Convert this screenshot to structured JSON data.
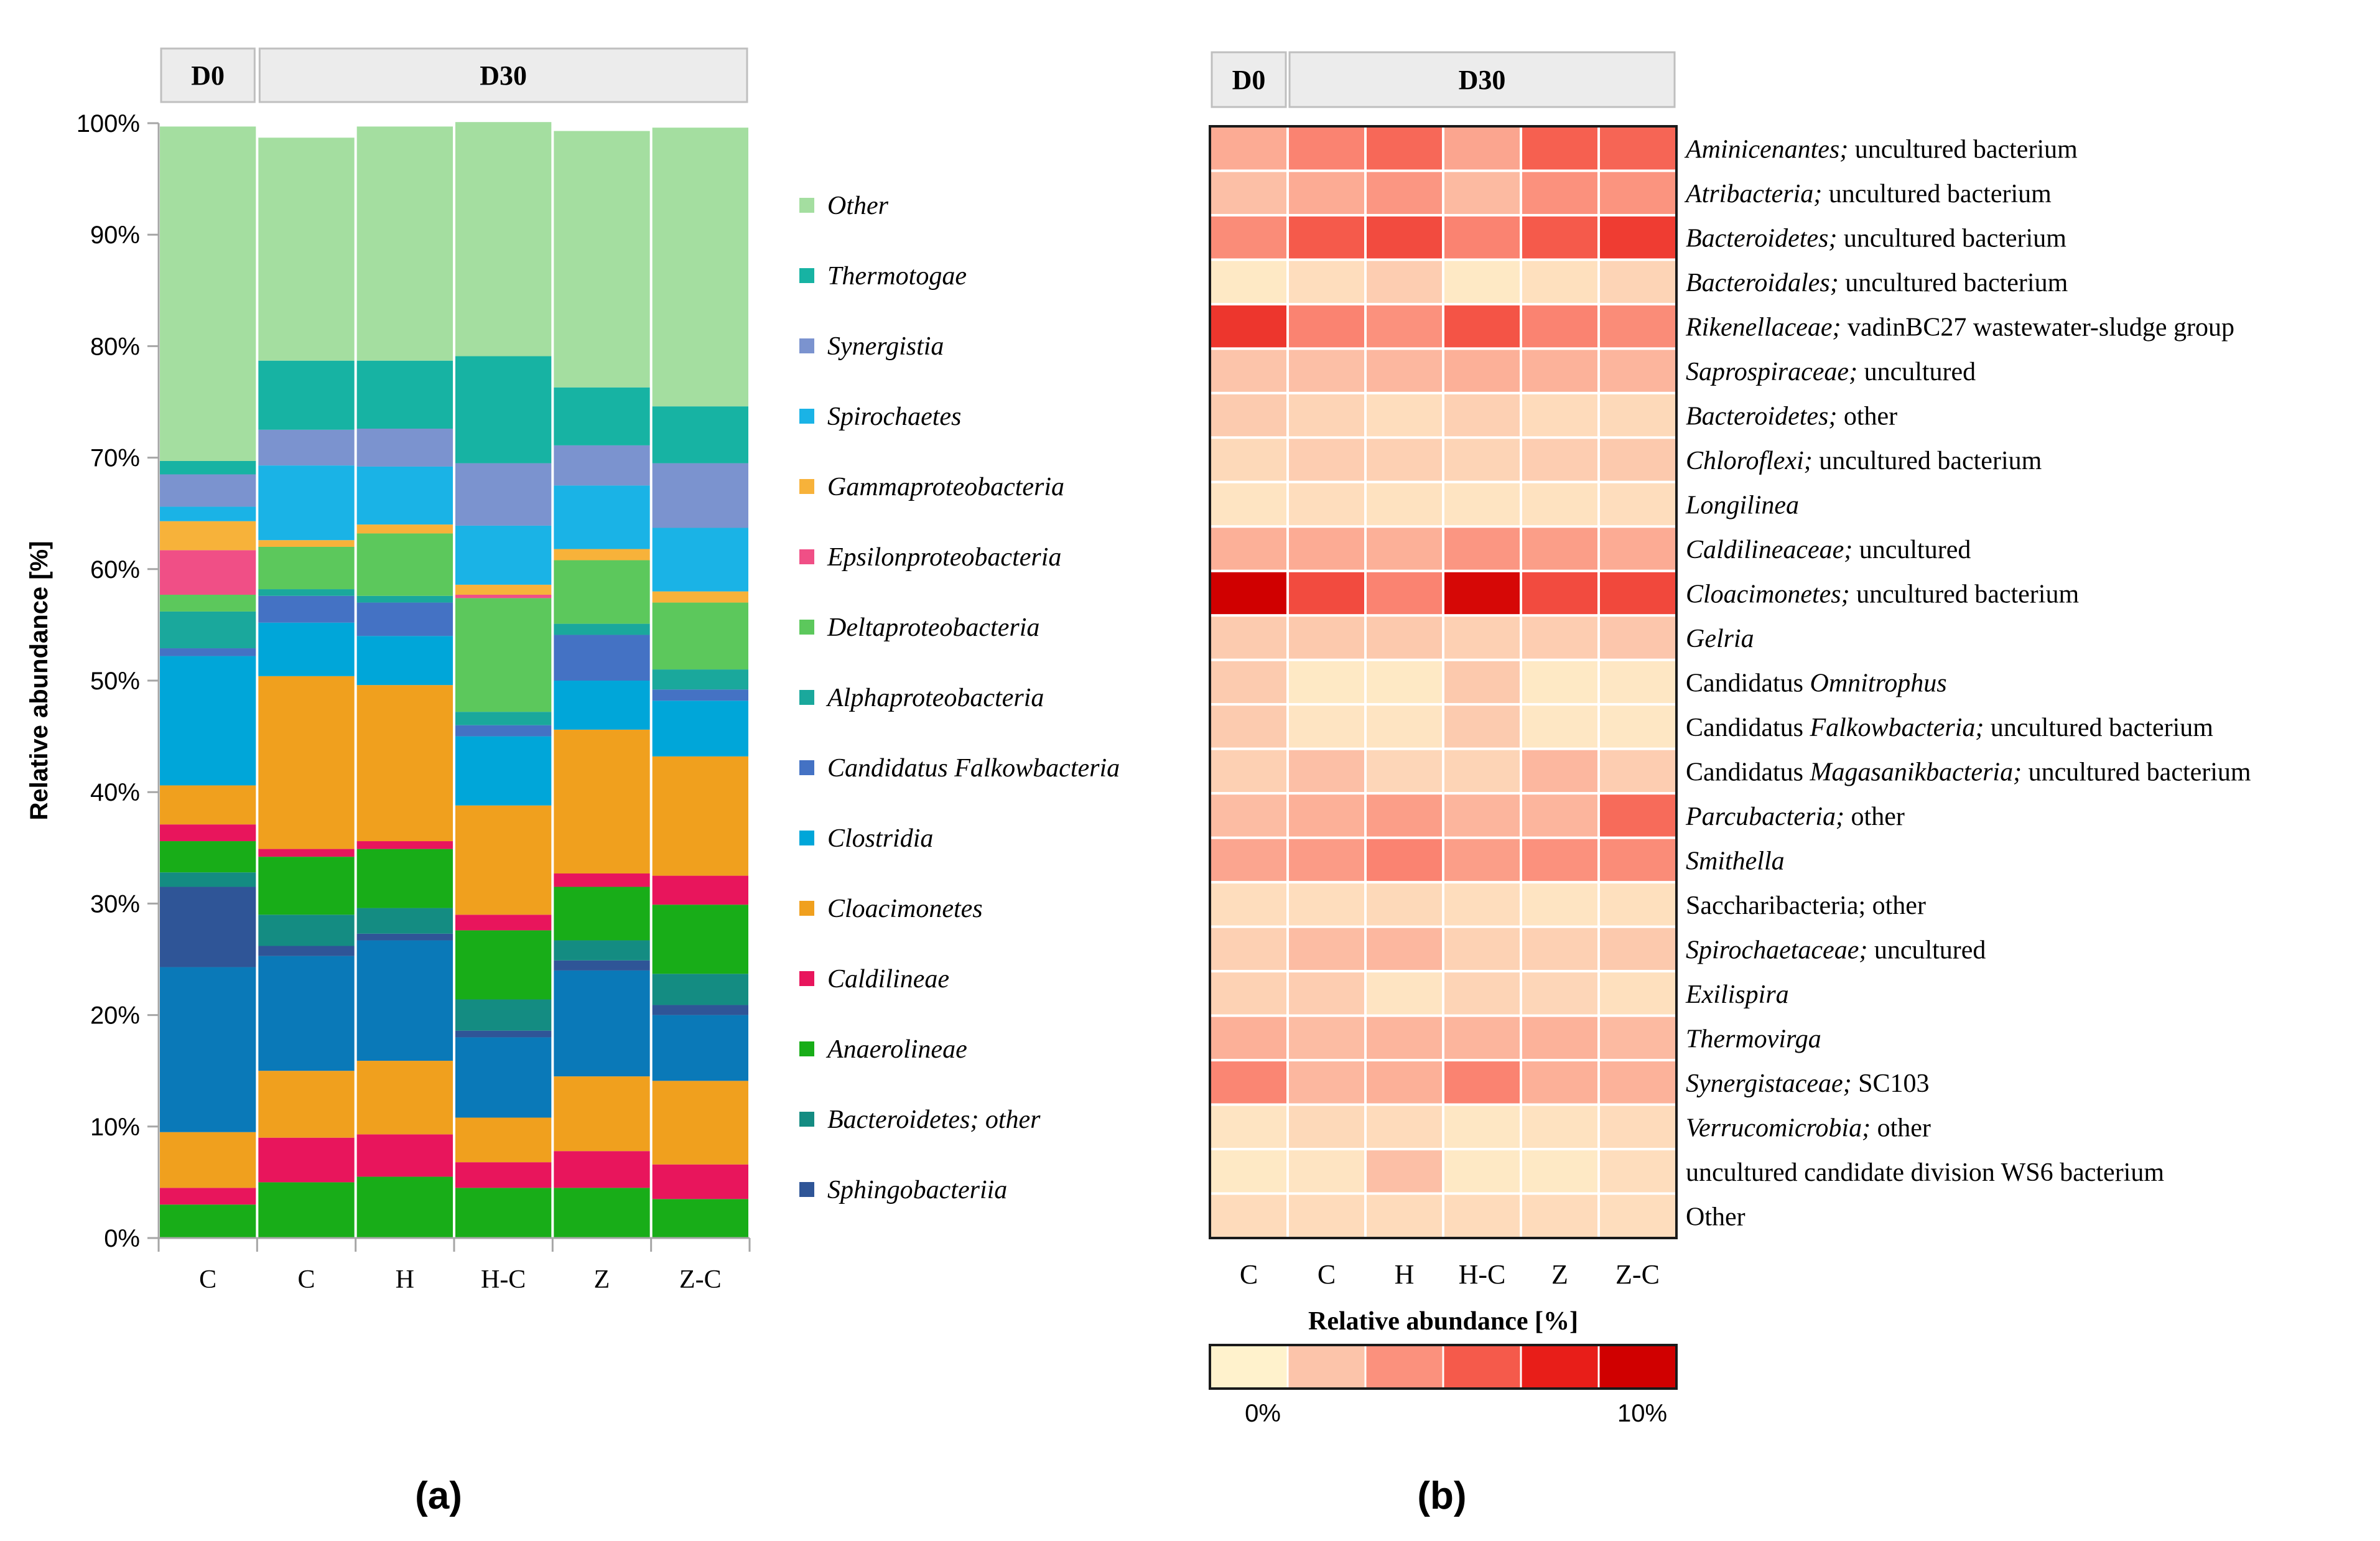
{
  "chart_data": [
    {
      "type": "bar",
      "stacked": true,
      "panel": "(a)",
      "groups": [
        {
          "label": "D0",
          "span": 1
        },
        {
          "label": "D30",
          "span": 5
        }
      ],
      "categories": [
        "C",
        "C",
        "H",
        "H-C",
        "Z",
        "Z-C"
      ],
      "ylabel": "Relative abundance [%]",
      "ylim": [
        0,
        100
      ],
      "yticks": [
        "0%",
        "10%",
        "20%",
        "30%",
        "40%",
        "50%",
        "60%",
        "70%",
        "80%",
        "90%",
        "100%"
      ],
      "legend_position": "right",
      "series": [
        {
          "name": "Anaerolineae",
          "color": "#18ad18",
          "italic": true,
          "values": [
            3,
            5,
            5.5,
            4.5,
            4.5,
            3.5
          ]
        },
        {
          "name": "Caldilineae",
          "color": "#e8155c",
          "italic": true,
          "values": [
            1.5,
            4,
            3.8,
            2.3,
            3.3,
            3.1
          ]
        },
        {
          "name": "Cloacimonetes",
          "color": "#f0a01e",
          "italic": true,
          "values": [
            5,
            6,
            6.6,
            4,
            6.7,
            7.5
          ]
        },
        {
          "name": "Clostridia",
          "color": "#0a79b8",
          "italic": true,
          "values": [
            14.8,
            10.3,
            10.8,
            7.2,
            9.5,
            5.9
          ]
        },
        {
          "name": "Sphingobacteriia",
          "color": "#2f5597",
          "italic": true,
          "values": [
            7.2,
            0.9,
            0.6,
            0.6,
            0.9,
            0.9
          ]
        },
        {
          "name": "Bacteroidetes; other",
          "color": "#148c82",
          "italic": true,
          "sub_italic": "Bacteroidetes;",
          "sub_plain": " other",
          "values": [
            1.3,
            2.8,
            2.3,
            2.8,
            1.8,
            2.8
          ]
        },
        {
          "name": "Anaerolineae",
          "color": "#18ad18",
          "italic": true,
          "values": [
            2.8,
            5.2,
            5.3,
            6.2,
            4.8,
            6.2
          ],
          "legend": false
        },
        {
          "name": "Caldilineae",
          "color": "#e8155c",
          "italic": true,
          "values": [
            1.5,
            0.7,
            0.7,
            1.4,
            1.2,
            2.6
          ],
          "legend": false
        },
        {
          "name": "Cloacimonetes",
          "color": "#f0a01e",
          "italic": true,
          "values": [
            3.5,
            15.5,
            14,
            9.8,
            12.9,
            10.7
          ],
          "legend": false
        },
        {
          "name": "Clostridia",
          "color": "#00a6d9",
          "italic": true,
          "values": [
            11.6,
            4.8,
            4.4,
            6.2,
            4.4,
            5
          ],
          "legend": false
        },
        {
          "name": "Candidatus Falkowbacteria",
          "color": "#4472c4",
          "italic": true,
          "values": [
            0.7,
            2.4,
            3,
            1,
            4.1,
            1
          ],
          "legend": false
        },
        {
          "name": "Alphaproteobacteria",
          "color": "#1aa89c",
          "italic": true,
          "values": [
            3.3,
            0.6,
            0.6,
            1.2,
            1,
            1.8
          ],
          "legend": false
        },
        {
          "name": "Deltaproteobacteria",
          "color": "#5cc85c",
          "italic": true,
          "values": [
            1.5,
            3.8,
            5.6,
            10.2,
            5.7,
            6
          ],
          "legend": false
        },
        {
          "name": "Epsilonproteobacteria",
          "color": "#f04f86",
          "italic": true,
          "values": [
            4,
            0,
            0,
            0.3,
            0,
            0
          ],
          "legend": false
        },
        {
          "name": "Gammaproteobacteria",
          "color": "#f7b23a",
          "italic": true,
          "values": [
            2.6,
            0.6,
            0.8,
            0.9,
            1,
            1
          ],
          "legend": false
        },
        {
          "name": "Spirochaetes",
          "color": "#1ab3e6",
          "italic": true,
          "values": [
            1.3,
            6.7,
            5.2,
            5.3,
            5.7,
            5.7
          ],
          "legend": false
        },
        {
          "name": "Synergistia",
          "color": "#7b93cf",
          "italic": true,
          "values": [
            2.9,
            3.2,
            3.4,
            5.6,
            3.6,
            5.8
          ],
          "legend": false
        },
        {
          "name": "Thermotogae",
          "color": "#17b3a3",
          "italic": true,
          "values": [
            1.2,
            6.2,
            6.1,
            9.6,
            5.2,
            5.1
          ],
          "legend": false
        },
        {
          "name": "Other",
          "color": "#a4dea0",
          "italic": true,
          "values": [
            30,
            20,
            21,
            21,
            23,
            25
          ],
          "legend": false
        }
      ],
      "legend": [
        {
          "name": "Other",
          "color": "#a4dea0"
        },
        {
          "name": "Thermotogae",
          "color": "#17b3a3"
        },
        {
          "name": "Synergistia",
          "color": "#7b93cf"
        },
        {
          "name": "Spirochaetes",
          "color": "#1ab3e6"
        },
        {
          "name": "Gammaproteobacteria",
          "color": "#f7b23a"
        },
        {
          "name": "Epsilonproteobacteria",
          "color": "#f04f86"
        },
        {
          "name": "Deltaproteobacteria",
          "color": "#5cc85c"
        },
        {
          "name": "Alphaproteobacteria",
          "color": "#1aa89c"
        },
        {
          "name": "Candidatus Falkowbacteria",
          "color": "#4472c4"
        },
        {
          "name": "Clostridia",
          "color": "#00a6d9"
        },
        {
          "name": "Cloacimonetes",
          "color": "#f0a01e"
        },
        {
          "name": "Caldilineae",
          "color": "#e8155c"
        },
        {
          "name": "Anaerolineae",
          "color": "#18ad18"
        },
        {
          "name": "Bacteroidetes; other",
          "color": "#148c82"
        },
        {
          "name": "Sphingobacteriia",
          "color": "#2f5597"
        }
      ]
    },
    {
      "type": "heatmap",
      "panel": "(b)",
      "groups": [
        {
          "label": "D0",
          "span": 1
        },
        {
          "label": "D30",
          "span": 5
        }
      ],
      "columns": [
        "C",
        "C",
        "H",
        "H-C",
        "Z",
        "Z-C"
      ],
      "color_scale_title": "Relative abundance [%]",
      "color_scale_min_label": "0%",
      "color_scale_max_label": "10%",
      "color_scale_range": [
        0,
        10
      ],
      "rows": [
        {
          "italic": "Aminicenantes;",
          "plain": " uncultured bacterium",
          "values": [
            3,
            4.5,
            5.5,
            3.2,
            5.8,
            5.6
          ]
        },
        {
          "italic": "Atribacteria;",
          "plain": " uncultured bacterium",
          "values": [
            2.2,
            3,
            3.8,
            2.4,
            4,
            3.9
          ]
        },
        {
          "italic": "Bacteroidetes;",
          "plain": " uncultured bacterium",
          "values": [
            4.2,
            6,
            6.5,
            4.5,
            6,
            7
          ]
        },
        {
          "italic": "Bacteroidales;",
          "plain": " uncultured bacterium",
          "values": [
            0.4,
            0.9,
            1.6,
            0.4,
            0.8,
            1.3
          ]
        },
        {
          "italic": "Rikenellaceae;",
          "plain": " vadinBC27 wastewater-sludge group",
          "values": [
            7.2,
            4.5,
            4,
            6.2,
            4.5,
            4.2
          ]
        },
        {
          "italic": "Saprospiraceae;",
          "plain": " uncultured",
          "values": [
            2,
            2.2,
            2.5,
            2.8,
            2.7,
            2.6
          ]
        },
        {
          "italic": "Bacteroidetes;",
          "plain": " other",
          "values": [
            1.7,
            1.3,
            0.9,
            1.5,
            1,
            1.1
          ]
        },
        {
          "italic": "Chloroflexi;",
          "plain": " uncultured bacterium",
          "values": [
            1.1,
            1.6,
            1.5,
            1.3,
            1.6,
            1.8
          ]
        },
        {
          "italic": "Longilinea",
          "plain": "",
          "values": [
            0.6,
            0.9,
            0.7,
            0.6,
            0.7,
            0.9
          ]
        },
        {
          "italic": "Caldilineaceae;",
          "plain": " uncultured",
          "values": [
            2.8,
            3,
            2.8,
            3.8,
            3.5,
            3
          ]
        },
        {
          "italic": "Cloacimonetes;",
          "plain": " uncultured bacterium",
          "values": [
            10,
            6.5,
            4.5,
            9.5,
            6.5,
            6.6
          ]
        },
        {
          "italic": "Gelria",
          "plain": "",
          "values": [
            1.7,
            1.8,
            1.8,
            1.5,
            1.6,
            1.9
          ]
        },
        {
          "prefix": "Candidatus ",
          "italic": "Omnitrophus",
          "plain": "",
          "values": [
            1.7,
            0.4,
            0.4,
            1.8,
            0.4,
            0.5
          ]
        },
        {
          "prefix": "Candidatus ",
          "italic": "Falkowbacteria;",
          "plain": " uncultured bacterium",
          "values": [
            1.7,
            0.6,
            0.6,
            1.7,
            0.5,
            0.5
          ]
        },
        {
          "prefix": "Candidatus ",
          "italic": "Magasanikbacteria;",
          "plain": " uncultured bacterium",
          "values": [
            1.5,
            2.2,
            1.2,
            1.3,
            2.5,
            1.6
          ]
        },
        {
          "italic": "Parcubacteria;",
          "plain": " other",
          "values": [
            2.3,
            2.8,
            3.5,
            2.6,
            2.6,
            5.4
          ]
        },
        {
          "italic": "Smithella",
          "plain": "",
          "values": [
            3.2,
            3.6,
            4.5,
            3.5,
            4,
            4.2
          ]
        },
        {
          "plain_only": "Saccharibacteria; other",
          "values": [
            0.9,
            0.9,
            1.1,
            0.9,
            0.6,
            0.8
          ]
        },
        {
          "italic": "Spirochaetaceae;",
          "plain": " uncultured",
          "values": [
            1.5,
            2.3,
            2.5,
            1.4,
            1.5,
            1.8
          ]
        },
        {
          "italic": "Exilispira",
          "plain": "",
          "values": [
            1.4,
            1.6,
            0.6,
            1.3,
            1.2,
            0.8
          ]
        },
        {
          "italic": "Thermovirga",
          "plain": "",
          "values": [
            2.8,
            2.3,
            2.6,
            2.6,
            2.7,
            2.4
          ]
        },
        {
          "italic": "Synergistaceae;",
          "plain": " SC103",
          "values": [
            4.4,
            2.5,
            2.8,
            4.5,
            2.8,
            2.7
          ]
        },
        {
          "italic": "Verrucomicrobia;",
          "plain": " other",
          "values": [
            0.6,
            1.1,
            1,
            0.5,
            0.7,
            1
          ]
        },
        {
          "plain_only": "uncultured candidate division WS6 bacterium",
          "values": [
            0.4,
            0.6,
            2.2,
            0.4,
            0.4,
            0.9
          ]
        },
        {
          "plain_only": "Other",
          "values": [
            1,
            1,
            1,
            1,
            1,
            0.9
          ]
        }
      ]
    }
  ],
  "labels": {
    "panel_a": "(a)",
    "panel_b": "(b)"
  },
  "colors": {
    "axis": "#a6a6a6",
    "header_fill": "#ececec",
    "header_border": "#bfbfbf"
  }
}
